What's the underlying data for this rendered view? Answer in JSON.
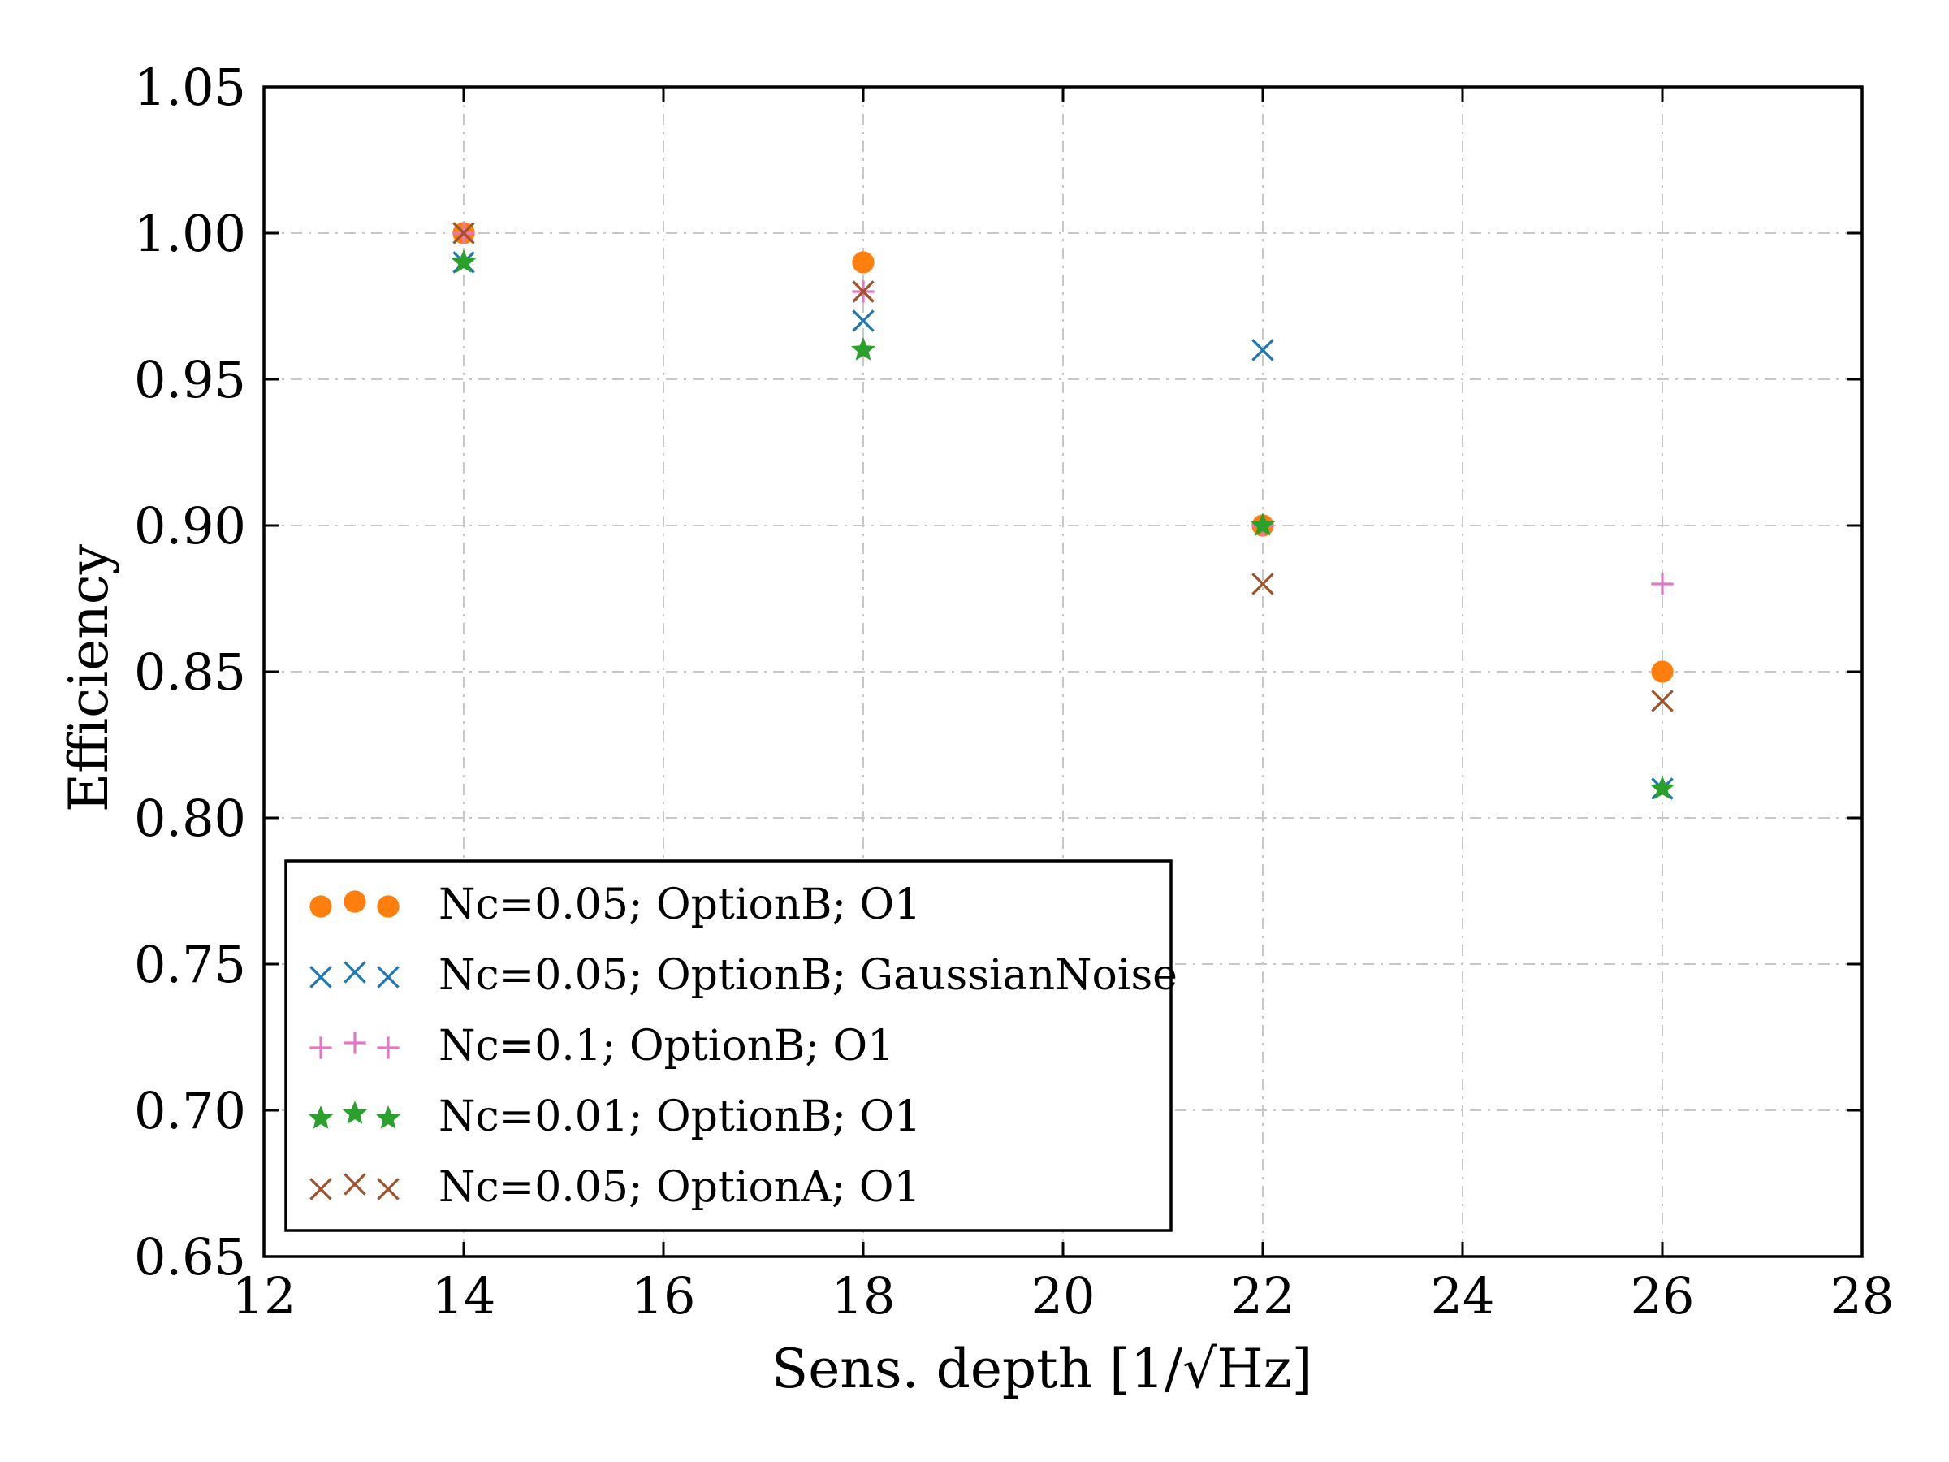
{
  "chart_data": {
    "type": "scatter",
    "title": "",
    "xlabel": "Sens. depth [1/√Hz]",
    "xlabel_prefix": "Sens. depth [1/",
    "xlabel_sqrt_sign": "√",
    "xlabel_radicand": "Hz",
    "xlabel_suffix": "]",
    "ylabel": "Efficiency",
    "xlim": [
      12,
      28
    ],
    "ylim": [
      0.65,
      1.05
    ],
    "x_ticks": [
      12,
      14,
      16,
      18,
      20,
      22,
      24,
      26,
      28
    ],
    "x_tick_labels": [
      "12",
      "14",
      "16",
      "18",
      "20",
      "22",
      "24",
      "26",
      "28"
    ],
    "y_ticks": [
      0.65,
      0.7,
      0.75,
      0.8,
      0.85,
      0.9,
      0.95,
      1.0,
      1.05
    ],
    "y_tick_labels": [
      "0.65",
      "0.70",
      "0.75",
      "0.80",
      "0.85",
      "0.90",
      "0.95",
      "1.00",
      "1.05"
    ],
    "grid": true,
    "legend_position": "lower-left",
    "series": [
      {
        "name": "Nc=0.05; OptionB; O1",
        "marker": "circle",
        "color": "#ff7f0e",
        "x": [
          14,
          18,
          22,
          26
        ],
        "y": [
          1.0,
          0.99,
          0.9,
          0.85
        ]
      },
      {
        "name": "Nc=0.05; OptionB; GaussianNoise",
        "marker": "x",
        "color": "#1f77b4",
        "x": [
          14,
          18,
          22,
          26
        ],
        "y": [
          0.99,
          0.97,
          0.96,
          0.81
        ]
      },
      {
        "name": "Nc=0.1; OptionB; O1",
        "marker": "plus",
        "color": "#e377c2",
        "x": [
          14,
          18,
          22,
          26
        ],
        "y": [
          1.0,
          0.98,
          0.9,
          0.88
        ]
      },
      {
        "name": "Nc=0.01; OptionB; O1",
        "marker": "star",
        "color": "#2ca02c",
        "x": [
          14,
          18,
          22,
          26
        ],
        "y": [
          0.99,
          0.96,
          0.9,
          0.81
        ]
      },
      {
        "name": "Nc=0.05; OptionA; O1",
        "marker": "x",
        "color": "#a0522d",
        "x": [
          14,
          18,
          22,
          26
        ],
        "y": [
          1.0,
          0.98,
          0.88,
          0.84
        ]
      }
    ]
  }
}
